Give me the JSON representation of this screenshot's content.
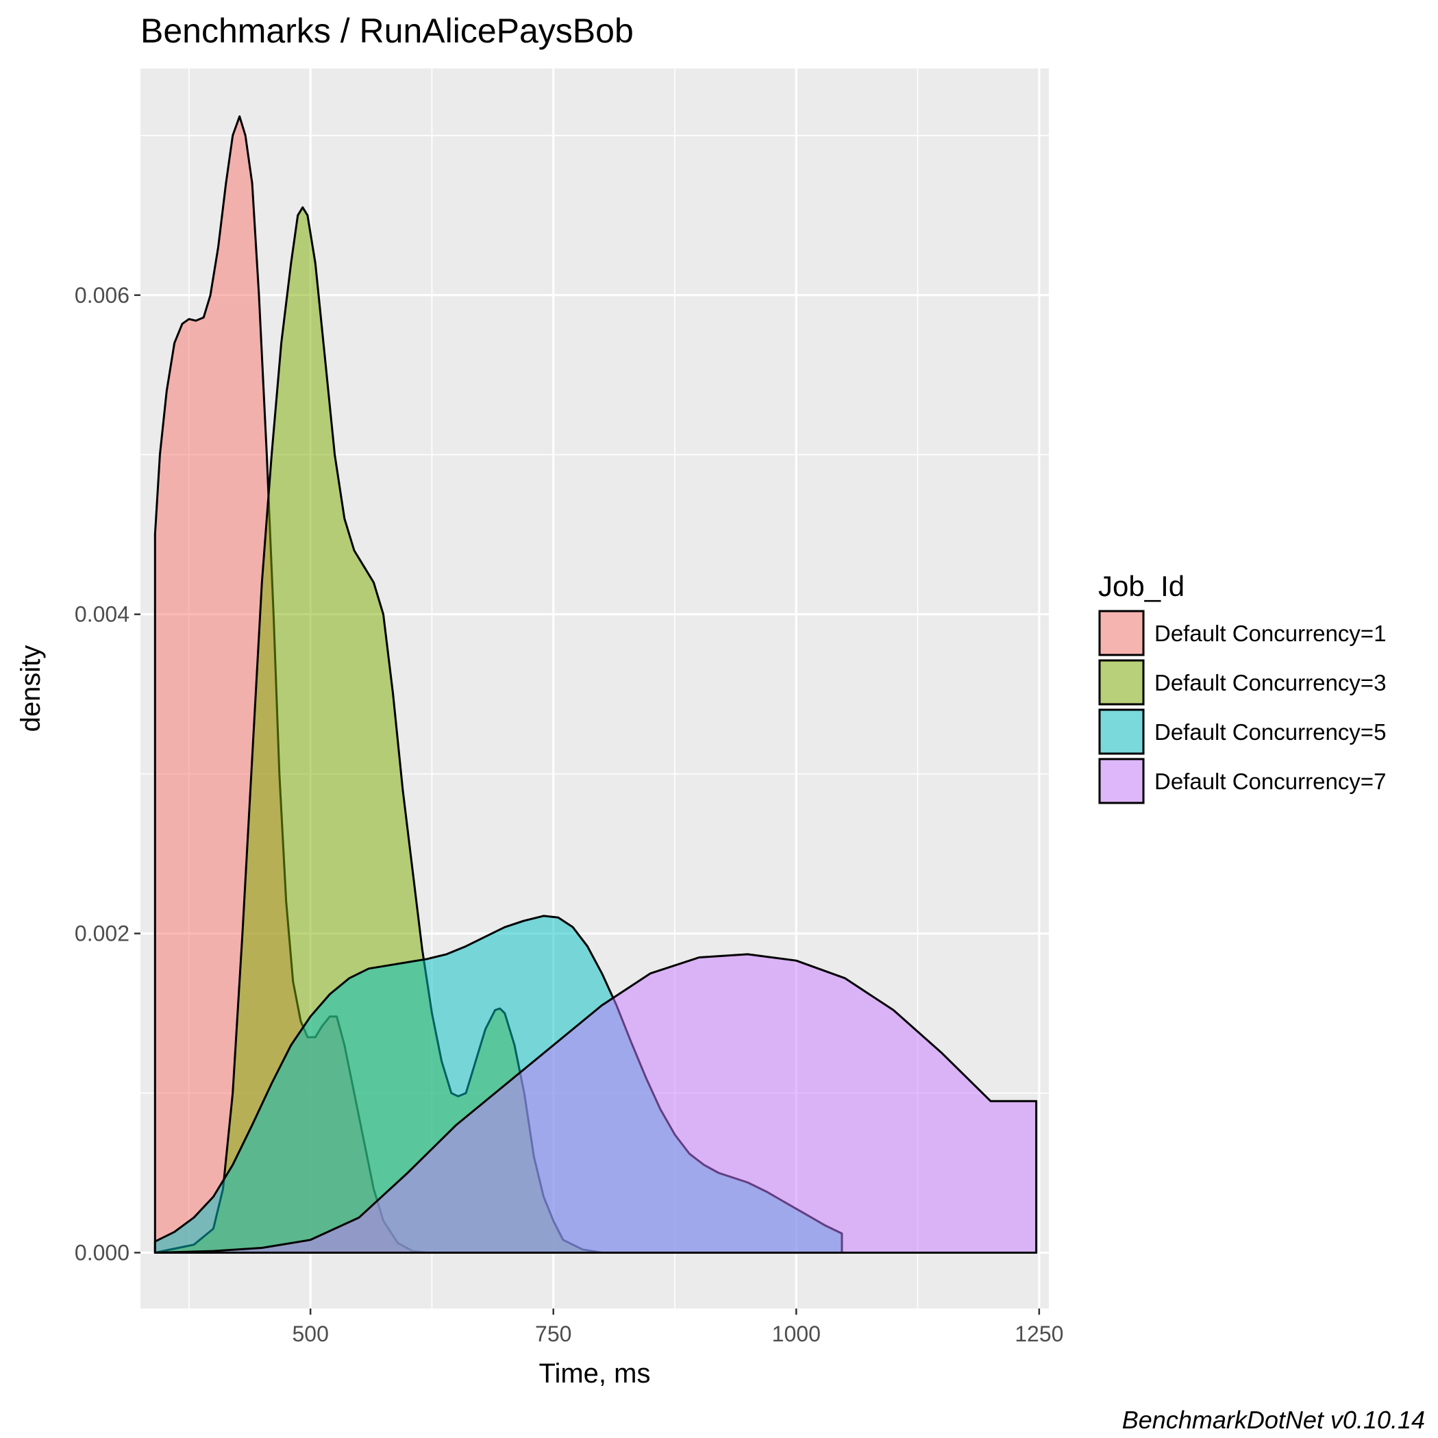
{
  "chart_data": {
    "type": "area",
    "title": "Benchmarks / RunAlicePaysBob",
    "xlabel": "Time, ms",
    "ylabel": "density",
    "xlim": [
      325,
      1260
    ],
    "ylim": [
      -0.00035,
      0.00742
    ],
    "x_ticks": [
      500,
      750,
      1000,
      1250
    ],
    "x_tick_labels": [
      "500",
      "750",
      "1000",
      "1250"
    ],
    "y_ticks": [
      0.0,
      0.002,
      0.004,
      0.006
    ],
    "y_tick_labels": [
      "0.000",
      "0.002",
      "0.004",
      "0.006"
    ],
    "grid": true,
    "legend": {
      "title": "Job_Id",
      "placement": "right"
    },
    "caption": "BenchmarkDotNet v0.10.14",
    "series": [
      {
        "name": "Default Concurrency=1",
        "color": "#F8766D",
        "points": [
          [
            340,
            0.0045
          ],
          [
            345,
            0.005
          ],
          [
            352,
            0.0054
          ],
          [
            360,
            0.0057
          ],
          [
            368,
            0.00582
          ],
          [
            375,
            0.00585
          ],
          [
            382,
            0.00584
          ],
          [
            390,
            0.00586
          ],
          [
            397,
            0.006
          ],
          [
            405,
            0.0063
          ],
          [
            413,
            0.0067
          ],
          [
            420,
            0.007
          ],
          [
            427,
            0.00712
          ],
          [
            433,
            0.007
          ],
          [
            440,
            0.0067
          ],
          [
            447,
            0.006
          ],
          [
            455,
            0.005
          ],
          [
            462,
            0.004
          ],
          [
            468,
            0.003
          ],
          [
            475,
            0.0022
          ],
          [
            482,
            0.0017
          ],
          [
            490,
            0.00145
          ],
          [
            497,
            0.00135
          ],
          [
            505,
            0.00135
          ],
          [
            512,
            0.00142
          ],
          [
            520,
            0.00148
          ],
          [
            527,
            0.00148
          ],
          [
            535,
            0.0013
          ],
          [
            545,
            0.001
          ],
          [
            555,
            0.0007
          ],
          [
            565,
            0.0004
          ],
          [
            575,
            0.0002
          ],
          [
            590,
            6e-05
          ],
          [
            605,
            1e-05
          ],
          [
            620,
            0.0
          ],
          [
            1247,
            0.0
          ]
        ]
      },
      {
        "name": "Default Concurrency=3",
        "color": "#7CAE00",
        "points": [
          [
            340,
            0.0
          ],
          [
            380,
            5e-05
          ],
          [
            400,
            0.00015
          ],
          [
            410,
            0.0004
          ],
          [
            420,
            0.001
          ],
          [
            430,
            0.002
          ],
          [
            440,
            0.0031
          ],
          [
            450,
            0.0042
          ],
          [
            460,
            0.005
          ],
          [
            470,
            0.0057
          ],
          [
            480,
            0.0062
          ],
          [
            487,
            0.0065
          ],
          [
            492,
            0.00655
          ],
          [
            497,
            0.0065
          ],
          [
            505,
            0.0062
          ],
          [
            515,
            0.0056
          ],
          [
            525,
            0.005
          ],
          [
            535,
            0.0046
          ],
          [
            545,
            0.0044
          ],
          [
            555,
            0.0043
          ],
          [
            565,
            0.0042
          ],
          [
            575,
            0.004
          ],
          [
            585,
            0.0035
          ],
          [
            595,
            0.0029
          ],
          [
            605,
            0.0024
          ],
          [
            615,
            0.0019
          ],
          [
            625,
            0.0015
          ],
          [
            635,
            0.0012
          ],
          [
            645,
            0.001
          ],
          [
            652,
            0.00098
          ],
          [
            660,
            0.001
          ],
          [
            670,
            0.0012
          ],
          [
            680,
            0.0014
          ],
          [
            690,
            0.00152
          ],
          [
            695,
            0.00153
          ],
          [
            700,
            0.0015
          ],
          [
            710,
            0.0013
          ],
          [
            720,
            0.001
          ],
          [
            730,
            0.0006
          ],
          [
            740,
            0.00035
          ],
          [
            750,
            0.0002
          ],
          [
            760,
            8e-05
          ],
          [
            780,
            2e-05
          ],
          [
            800,
            0.0
          ],
          [
            1247,
            0.0
          ]
        ]
      },
      {
        "name": "Default Concurrency=5",
        "color": "#00BFC4",
        "points": [
          [
            340,
            7e-05
          ],
          [
            360,
            0.00013
          ],
          [
            380,
            0.00022
          ],
          [
            400,
            0.00035
          ],
          [
            420,
            0.00055
          ],
          [
            440,
            0.0008
          ],
          [
            460,
            0.00106
          ],
          [
            480,
            0.0013
          ],
          [
            500,
            0.00148
          ],
          [
            520,
            0.00162
          ],
          [
            540,
            0.00172
          ],
          [
            560,
            0.00178
          ],
          [
            580,
            0.0018
          ],
          [
            600,
            0.00182
          ],
          [
            620,
            0.00184
          ],
          [
            640,
            0.00187
          ],
          [
            660,
            0.00192
          ],
          [
            680,
            0.00198
          ],
          [
            700,
            0.00204
          ],
          [
            720,
            0.00208
          ],
          [
            740,
            0.00211
          ],
          [
            755,
            0.0021
          ],
          [
            770,
            0.00204
          ],
          [
            785,
            0.00192
          ],
          [
            800,
            0.00175
          ],
          [
            815,
            0.00155
          ],
          [
            830,
            0.00132
          ],
          [
            845,
            0.0011
          ],
          [
            860,
            0.0009
          ],
          [
            875,
            0.00074
          ],
          [
            890,
            0.00062
          ],
          [
            905,
            0.00055
          ],
          [
            920,
            0.0005
          ],
          [
            935,
            0.00047
          ],
          [
            950,
            0.00044
          ],
          [
            970,
            0.00038
          ],
          [
            990,
            0.00031
          ],
          [
            1010,
            0.00024
          ],
          [
            1030,
            0.00017
          ],
          [
            1047,
            0.00012
          ]
        ]
      },
      {
        "name": "Default Concurrency=7",
        "color": "#C77CFF",
        "points": [
          [
            340,
            0.0
          ],
          [
            400,
            1e-05
          ],
          [
            450,
            3e-05
          ],
          [
            500,
            8e-05
          ],
          [
            550,
            0.00022
          ],
          [
            600,
            0.0005
          ],
          [
            650,
            0.0008
          ],
          [
            700,
            0.00105
          ],
          [
            750,
            0.0013
          ],
          [
            800,
            0.00155
          ],
          [
            850,
            0.00175
          ],
          [
            900,
            0.00185
          ],
          [
            950,
            0.00187
          ],
          [
            1000,
            0.00183
          ],
          [
            1050,
            0.00172
          ],
          [
            1100,
            0.00152
          ],
          [
            1150,
            0.00125
          ],
          [
            1200,
            0.00095
          ],
          [
            1247,
            0.00095
          ]
        ]
      }
    ]
  }
}
